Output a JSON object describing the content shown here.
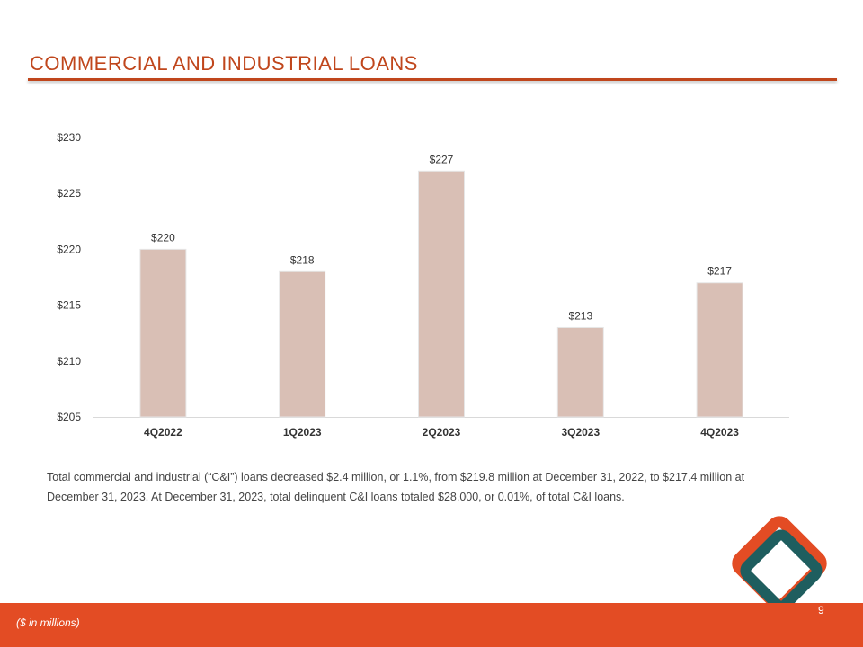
{
  "slide": {
    "title": "COMMERCIAL AND INDUSTRIAL LOANS",
    "body": "Total commercial and industrial (“C&I”) loans decreased $2.4 million, or 1.1%, from $219.8 million at December 31, 2022, to $217.4 million at December 31, 2023. At December 31, 2023, total delinquent C&I loans totaled $28,000, or 0.01%, of total C&I loans.",
    "footnote": "($ in millions)",
    "page_number": "9"
  },
  "colors": {
    "accent": "#e34c24",
    "title": "#c0461c",
    "bar": "#d9bfb5",
    "logo_orange": "#e34c24",
    "logo_teal": "#1f5e5f"
  },
  "chart_data": {
    "type": "bar",
    "categories": [
      "4Q2022",
      "1Q2023",
      "2Q2023",
      "3Q2023",
      "4Q2023"
    ],
    "values": [
      220,
      218,
      227,
      213,
      217
    ],
    "data_labels": [
      "$220",
      "$218",
      "$227",
      "$213",
      "$217"
    ],
    "y_ticks": [
      205,
      210,
      215,
      220,
      225,
      230
    ],
    "y_tick_labels": [
      "$205",
      "$210",
      "$215",
      "$220",
      "$225",
      "$230"
    ],
    "ylim": [
      205,
      230
    ],
    "title": "",
    "xlabel": "",
    "ylabel": "",
    "grid": false,
    "legend": "none"
  }
}
